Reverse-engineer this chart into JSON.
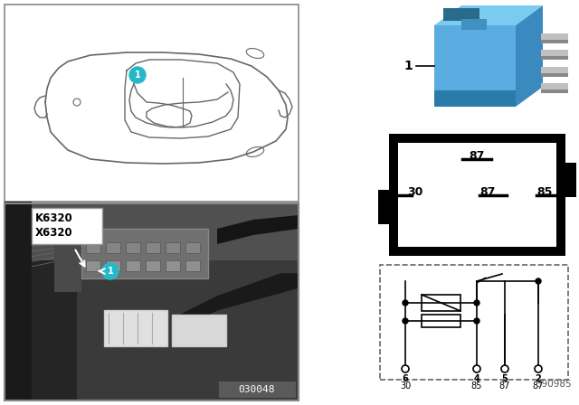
{
  "bg_color": "#ffffff",
  "relay_blue_color": "#5aade0",
  "relay_blue_dark": "#3a8abf",
  "relay_blue_top": "#7bcbf0",
  "relay_pin_color": "#b0b0b0",
  "relay_pin_dark": "#888888",
  "k6320_label": "K6320\nX6320",
  "catalog_num": "030048",
  "part_num": "390985",
  "photo_bg": "#444444",
  "photo_mid": "#606060",
  "photo_light": "#888888"
}
